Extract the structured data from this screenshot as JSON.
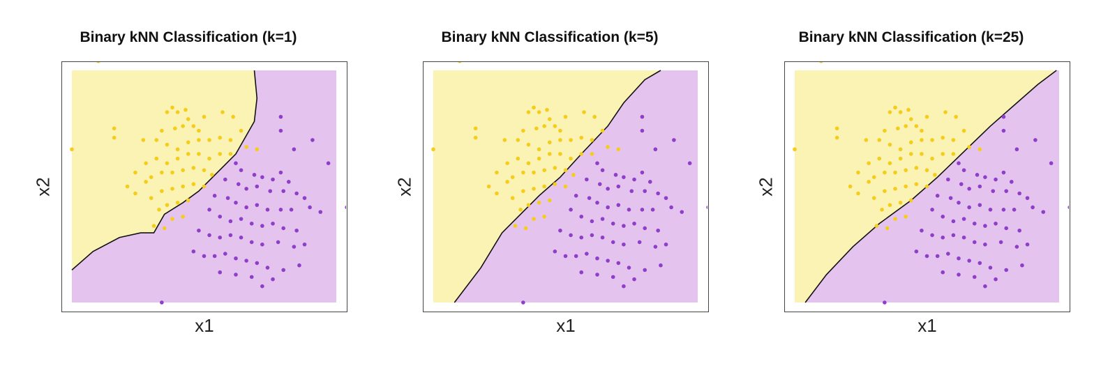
{
  "colors": {
    "class_a": "#f5cc1a",
    "class_b": "#8e3ec8",
    "region_a": "#fbf3b4",
    "region_b": "#e4c4ee",
    "boundary": "#111111"
  },
  "chart_data": [
    {
      "type": "scatter",
      "title": "Binary kNN Classification (k=1)",
      "xlabel": "x1",
      "ylabel": "x2",
      "k": 1,
      "boundary": [
        [
          0.0,
          0.86
        ],
        [
          0.08,
          0.78
        ],
        [
          0.18,
          0.72
        ],
        [
          0.26,
          0.7
        ],
        [
          0.31,
          0.7
        ],
        [
          0.35,
          0.62
        ],
        [
          0.42,
          0.57
        ],
        [
          0.48,
          0.52
        ],
        [
          0.55,
          0.44
        ],
        [
          0.62,
          0.36
        ],
        [
          0.66,
          0.28
        ],
        [
          0.69,
          0.22
        ],
        [
          0.7,
          0.12
        ],
        [
          0.69,
          0.0
        ]
      ]
    },
    {
      "type": "scatter",
      "title": "Binary kNN Classification (k=5)",
      "xlabel": "x1",
      "ylabel": "x2",
      "k": 5,
      "boundary": [
        [
          0.08,
          1.0
        ],
        [
          0.18,
          0.85
        ],
        [
          0.26,
          0.7
        ],
        [
          0.33,
          0.62
        ],
        [
          0.4,
          0.54
        ],
        [
          0.48,
          0.46
        ],
        [
          0.56,
          0.36
        ],
        [
          0.66,
          0.24
        ],
        [
          0.72,
          0.14
        ],
        [
          0.8,
          0.04
        ],
        [
          0.86,
          0.0
        ]
      ]
    },
    {
      "type": "scatter",
      "title": "Binary kNN Classification (k=25)",
      "xlabel": "x1",
      "ylabel": "x2",
      "k": 25,
      "boundary": [
        [
          0.04,
          1.0
        ],
        [
          0.12,
          0.88
        ],
        [
          0.22,
          0.76
        ],
        [
          0.32,
          0.66
        ],
        [
          0.44,
          0.56
        ],
        [
          0.54,
          0.46
        ],
        [
          0.64,
          0.35
        ],
        [
          0.74,
          0.24
        ],
        [
          0.84,
          0.14
        ],
        [
          0.92,
          0.06
        ],
        [
          0.99,
          0.0
        ]
      ]
    }
  ],
  "points_a": [
    [
      0.1,
      -0.04
    ],
    [
      0.0,
      0.34
    ],
    [
      0.16,
      0.25
    ],
    [
      0.16,
      0.29
    ],
    [
      0.36,
      0.18
    ],
    [
      0.38,
      0.16
    ],
    [
      0.4,
      0.18
    ],
    [
      0.43,
      0.17
    ],
    [
      0.44,
      0.21
    ],
    [
      0.34,
      0.26
    ],
    [
      0.39,
      0.25
    ],
    [
      0.42,
      0.24
    ],
    [
      0.46,
      0.24
    ],
    [
      0.48,
      0.26
    ],
    [
      0.5,
      0.2
    ],
    [
      0.57,
      0.18
    ],
    [
      0.61,
      0.2
    ],
    [
      0.64,
      0.26
    ],
    [
      0.27,
      0.3
    ],
    [
      0.32,
      0.3
    ],
    [
      0.36,
      0.32
    ],
    [
      0.4,
      0.34
    ],
    [
      0.44,
      0.31
    ],
    [
      0.48,
      0.3
    ],
    [
      0.52,
      0.3
    ],
    [
      0.56,
      0.29
    ],
    [
      0.6,
      0.3
    ],
    [
      0.66,
      0.33
    ],
    [
      0.7,
      0.34
    ],
    [
      0.24,
      0.44
    ],
    [
      0.28,
      0.4
    ],
    [
      0.32,
      0.38
    ],
    [
      0.36,
      0.4
    ],
    [
      0.4,
      0.38
    ],
    [
      0.44,
      0.36
    ],
    [
      0.48,
      0.36
    ],
    [
      0.52,
      0.38
    ],
    [
      0.56,
      0.36
    ],
    [
      0.6,
      0.36
    ],
    [
      0.21,
      0.5
    ],
    [
      0.24,
      0.53
    ],
    [
      0.28,
      0.48
    ],
    [
      0.3,
      0.46
    ],
    [
      0.34,
      0.44
    ],
    [
      0.38,
      0.44
    ],
    [
      0.42,
      0.43
    ],
    [
      0.46,
      0.42
    ],
    [
      0.5,
      0.43
    ],
    [
      0.53,
      0.45
    ],
    [
      0.3,
      0.55
    ],
    [
      0.34,
      0.52
    ],
    [
      0.38,
      0.51
    ],
    [
      0.42,
      0.5
    ],
    [
      0.46,
      0.49
    ],
    [
      0.5,
      0.5
    ],
    [
      0.33,
      0.6
    ],
    [
      0.36,
      0.58
    ],
    [
      0.4,
      0.57
    ],
    [
      0.44,
      0.56
    ],
    [
      0.38,
      0.64
    ],
    [
      0.42,
      0.63
    ],
    [
      0.31,
      0.67
    ],
    [
      0.35,
      0.68
    ]
  ],
  "points_b": [
    [
      0.79,
      0.2
    ],
    [
      0.79,
      0.26
    ],
    [
      0.91,
      0.3
    ],
    [
      0.84,
      0.34
    ],
    [
      0.97,
      0.4
    ],
    [
      0.62,
      0.4
    ],
    [
      0.64,
      0.43
    ],
    [
      0.69,
      0.45
    ],
    [
      0.72,
      0.46
    ],
    [
      0.76,
      0.47
    ],
    [
      0.79,
      0.44
    ],
    [
      0.82,
      0.48
    ],
    [
      0.58,
      0.47
    ],
    [
      0.63,
      0.49
    ],
    [
      0.66,
      0.51
    ],
    [
      0.7,
      0.5
    ],
    [
      0.75,
      0.52
    ],
    [
      0.8,
      0.52
    ],
    [
      0.85,
      0.53
    ],
    [
      0.88,
      0.55
    ],
    [
      0.54,
      0.54
    ],
    [
      0.59,
      0.55
    ],
    [
      0.62,
      0.57
    ],
    [
      0.66,
      0.59
    ],
    [
      0.7,
      0.58
    ],
    [
      0.74,
      0.6
    ],
    [
      0.79,
      0.6
    ],
    [
      0.83,
      0.6
    ],
    [
      0.9,
      0.59
    ],
    [
      0.94,
      0.61
    ],
    [
      1.04,
      0.59
    ],
    [
      0.52,
      0.6
    ],
    [
      0.56,
      0.63
    ],
    [
      0.6,
      0.65
    ],
    [
      0.64,
      0.64
    ],
    [
      0.68,
      0.66
    ],
    [
      0.72,
      0.67
    ],
    [
      0.76,
      0.66
    ],
    [
      0.8,
      0.68
    ],
    [
      0.85,
      0.69
    ],
    [
      0.48,
      0.69
    ],
    [
      0.52,
      0.71
    ],
    [
      0.56,
      0.72
    ],
    [
      0.6,
      0.71
    ],
    [
      0.64,
      0.72
    ],
    [
      0.68,
      0.74
    ],
    [
      0.72,
      0.75
    ],
    [
      0.78,
      0.74
    ],
    [
      0.84,
      0.76
    ],
    [
      0.88,
      0.75
    ],
    [
      0.46,
      0.78
    ],
    [
      0.5,
      0.8
    ],
    [
      0.54,
      0.8
    ],
    [
      0.58,
      0.79
    ],
    [
      0.62,
      0.81
    ],
    [
      0.66,
      0.82
    ],
    [
      0.7,
      0.83
    ],
    [
      0.74,
      0.85
    ],
    [
      0.8,
      0.86
    ],
    [
      0.86,
      0.84
    ],
    [
      0.56,
      0.87
    ],
    [
      0.62,
      0.88
    ],
    [
      0.68,
      0.89
    ],
    [
      0.76,
      0.9
    ],
    [
      0.72,
      0.93
    ],
    [
      0.34,
      1.0
    ]
  ]
}
